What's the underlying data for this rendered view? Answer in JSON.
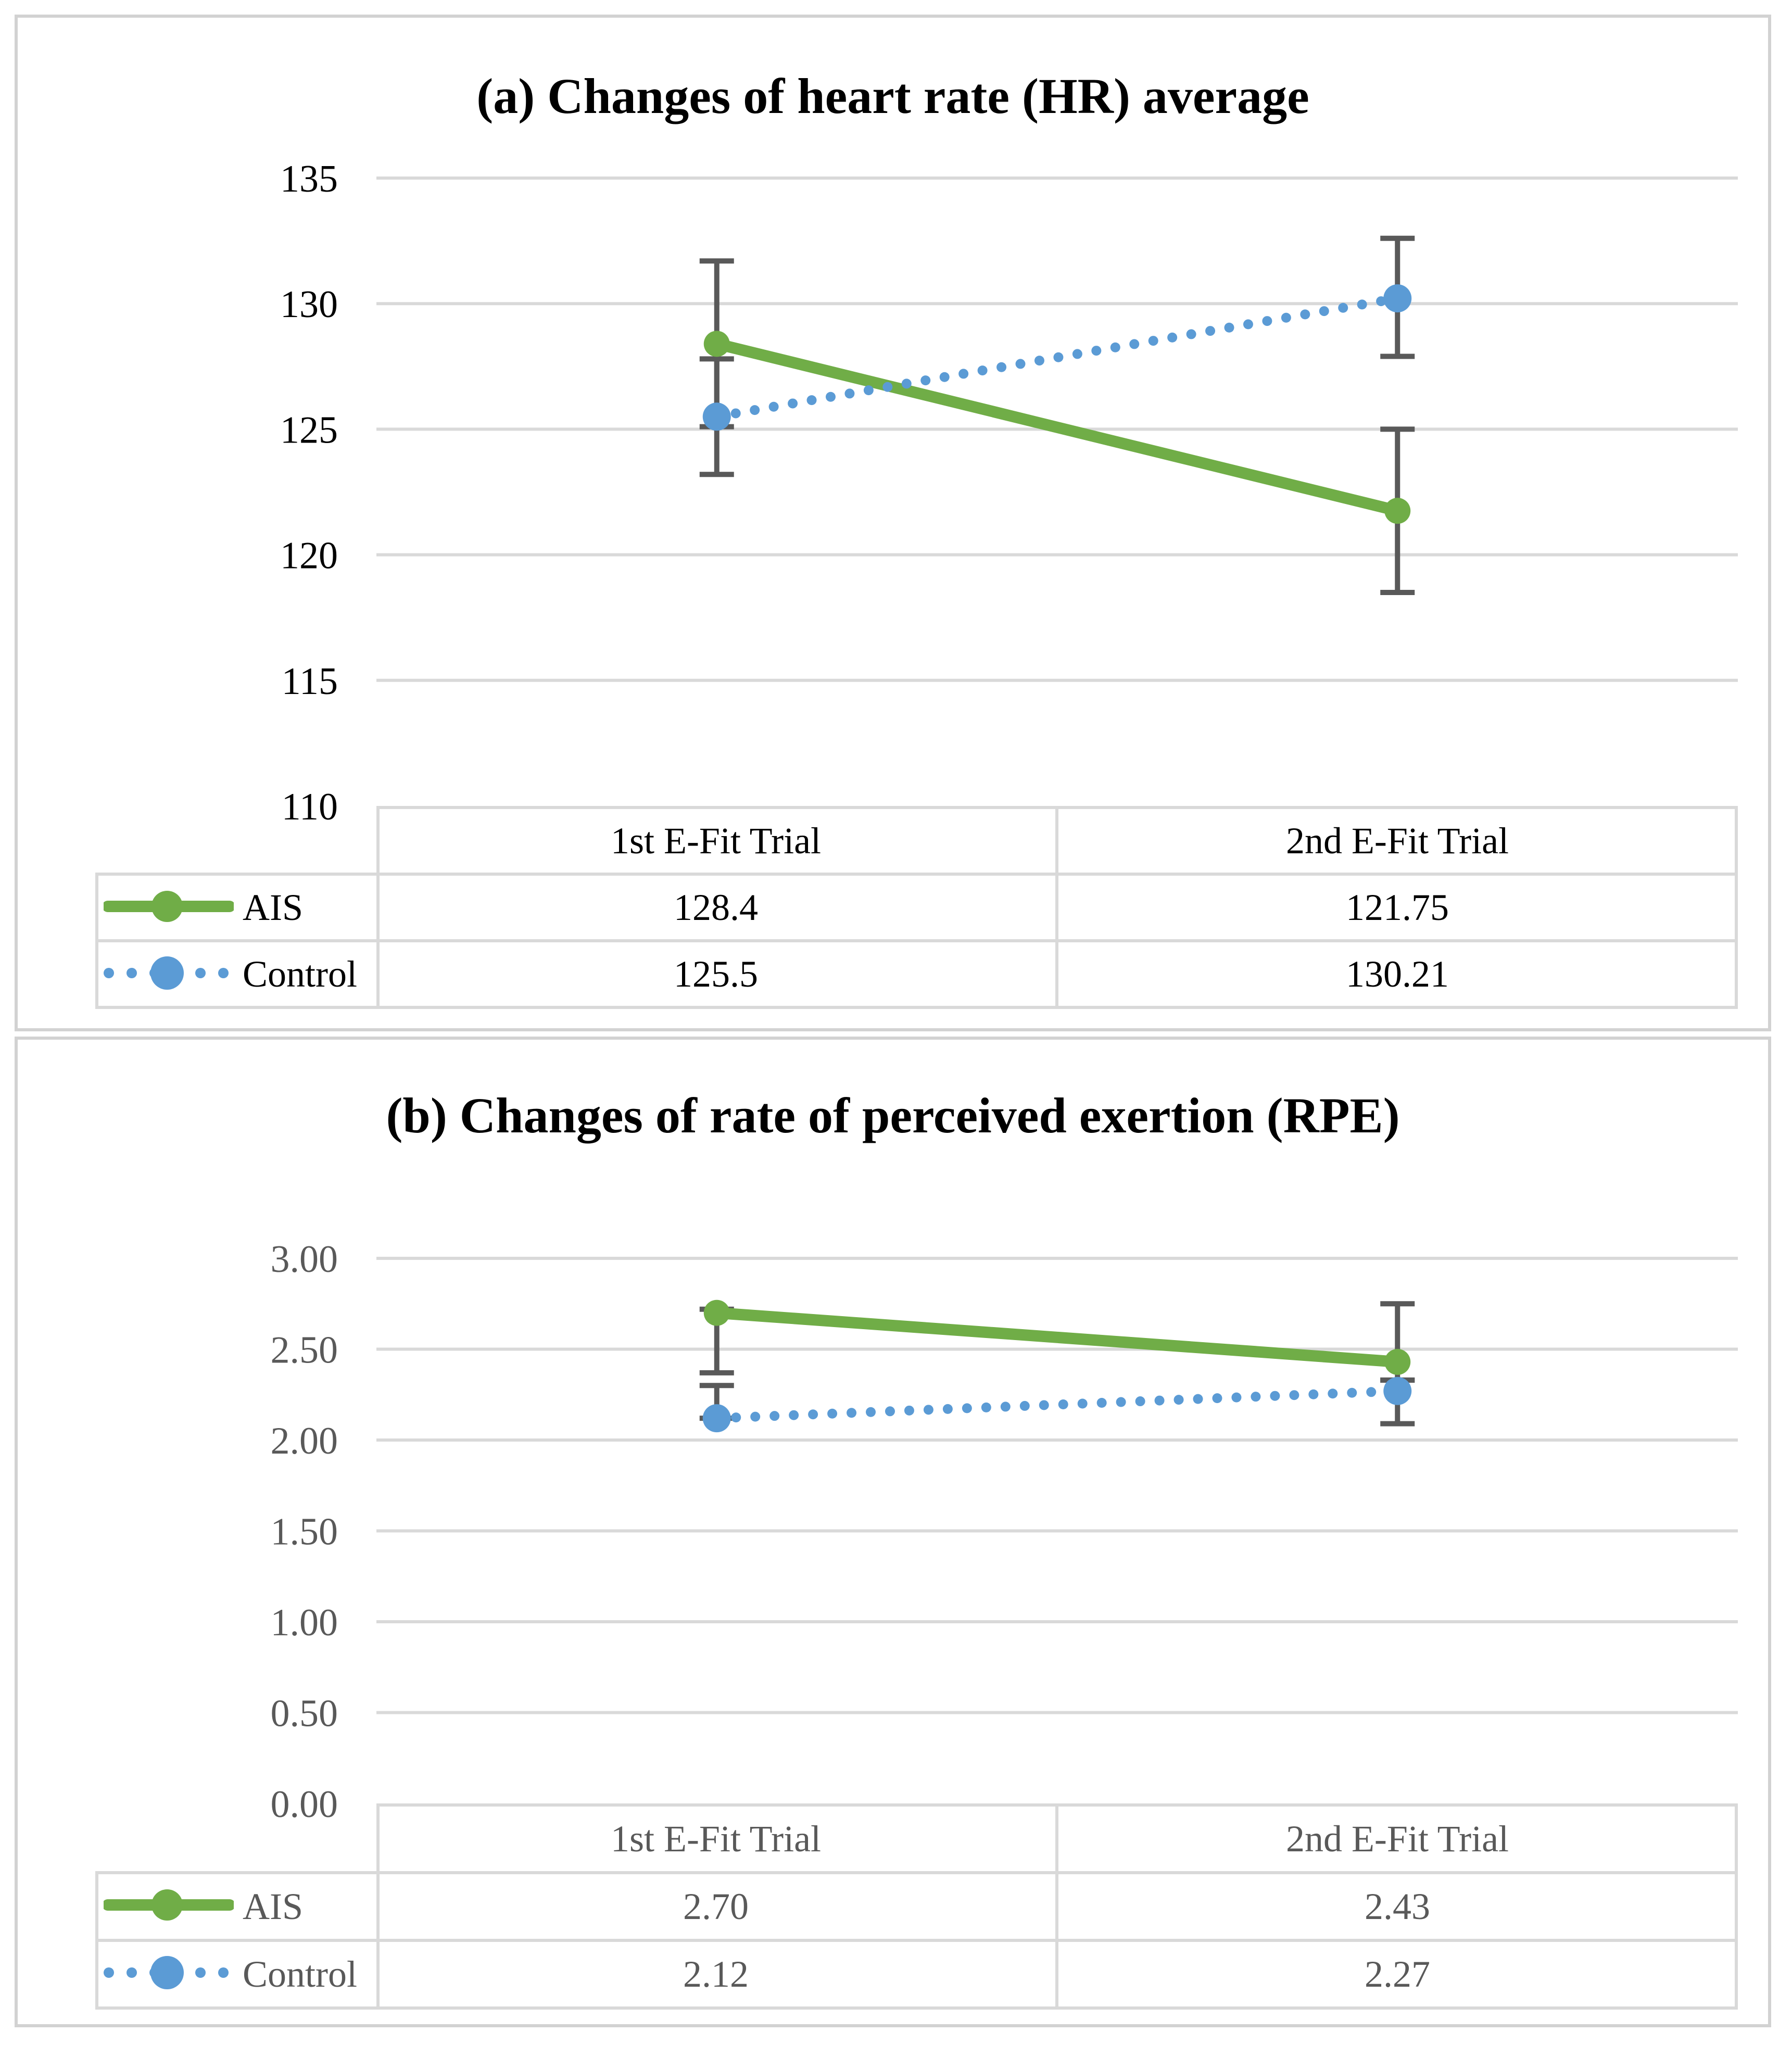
{
  "colors": {
    "ais_green": "#70AD47",
    "control_blue": "#5B9BD5",
    "error_bar_gray": "#595959",
    "gridline_gray": "#D9D9D9",
    "panel_border_gray": "#D2D2D2",
    "panel_a_text": "#000000",
    "panel_b_text": "#595959"
  },
  "chart_data": [
    {
      "type": "line",
      "panel": "a",
      "title": "(a) Changes of heart rate (HR) average",
      "categories": [
        "1st E-Fit Trial",
        "2nd E-Fit Trial"
      ],
      "ylim": [
        110,
        135
      ],
      "ytick_values": [
        135,
        130,
        125,
        120,
        115,
        110
      ],
      "yticks": [
        "135",
        "130",
        "125",
        "120",
        "115",
        "110"
      ],
      "grid": true,
      "legend_position": "table-left",
      "tick_color": "#000000",
      "series": [
        {
          "name": "AIS",
          "values": [
            128.4,
            121.75
          ],
          "display": [
            "128.4",
            "121.75"
          ],
          "color": "#70AD47",
          "style": "solid",
          "error_bars": [
            {
              "lo": 125.1,
              "hi": 131.7
            },
            {
              "lo": 118.5,
              "hi": 125.0
            }
          ]
        },
        {
          "name": "Control",
          "values": [
            125.5,
            130.21
          ],
          "display": [
            "125.5",
            "130.21"
          ],
          "color": "#5B9BD5",
          "style": "dotted",
          "error_bars": [
            {
              "lo": 123.2,
              "hi": 127.8
            },
            {
              "lo": 127.9,
              "hi": 132.6
            }
          ]
        }
      ]
    },
    {
      "type": "line",
      "panel": "b",
      "title": "(b) Changes of rate of perceived exertion (RPE)",
      "categories": [
        "1st E-Fit Trial",
        "2nd E-Fit Trial"
      ],
      "ylim": [
        0,
        3
      ],
      "ytick_values": [
        3.0,
        2.5,
        2.0,
        1.5,
        1.0,
        0.5,
        0.0
      ],
      "yticks": [
        "3.00",
        "2.50",
        "2.00",
        "1.50",
        "1.00",
        "0.50",
        "0.00"
      ],
      "grid": true,
      "legend_position": "table-left",
      "tick_color": "#595959",
      "series": [
        {
          "name": "AIS",
          "values": [
            2.7,
            2.43
          ],
          "display": [
            "2.70",
            "2.43"
          ],
          "color": "#70AD47",
          "style": "solid",
          "error_bars": [
            {
              "lo": 2.37,
              "hi": 2.72
            },
            {
              "lo": 2.33,
              "hi": 2.75
            }
          ]
        },
        {
          "name": "Control",
          "values": [
            2.12,
            2.27
          ],
          "display": [
            "2.12",
            "2.27"
          ],
          "color": "#5B9BD5",
          "style": "dotted",
          "error_bars": [
            {
              "lo": 2.12,
              "hi": 2.3
            },
            {
              "lo": 2.09,
              "hi": 2.33
            }
          ]
        }
      ]
    }
  ]
}
